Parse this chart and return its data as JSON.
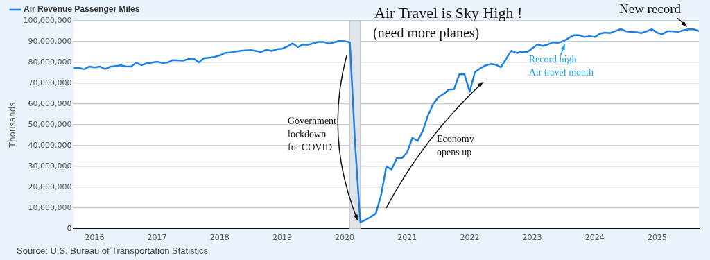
{
  "chart_data": {
    "type": "line",
    "title": "Air Travel is Sky High !",
    "subtitle": "(need more planes)",
    "ylabel": "Thousands",
    "x": [
      "2015-09",
      "2015-10",
      "2015-11",
      "2015-12",
      "2016-01",
      "2016-02",
      "2016-03",
      "2016-04",
      "2016-06",
      "2016-07",
      "2016-08",
      "2016-09",
      "2016-10",
      "2016-11",
      "2017-01",
      "2017-02",
      "2017-03",
      "2017-04",
      "2017-06",
      "2017-07",
      "2017-08",
      "2017-09",
      "2017-10",
      "2017-12",
      "2018-01",
      "2018-02",
      "2018-03",
      "2018-05",
      "2018-07",
      "2018-09",
      "2018-10",
      "2018-11",
      "2018-12",
      "2019-01",
      "2019-02",
      "2019-03",
      "2019-04",
      "2019-05",
      "2019-06",
      "2019-08",
      "2019-09",
      "2019-10",
      "2019-12",
      "2020-01",
      "2020-02",
      "2020-03",
      "2020-04",
      "2020-05",
      "2020-06",
      "2020-07",
      "2020-08",
      "2020-09",
      "2020-10",
      "2020-11",
      "2020-12",
      "2021-01",
      "2021-02",
      "2021-03",
      "2021-04",
      "2021-05",
      "2021-06",
      "2021-07",
      "2021-08",
      "2021-09",
      "2021-10",
      "2021-11",
      "2021-12",
      "2022-01",
      "2022-02",
      "2022-03",
      "2022-04",
      "2022-05",
      "2022-06",
      "2022-07",
      "2022-08",
      "2022-09",
      "2022-10",
      "2022-11",
      "2022-12",
      "2023-01",
      "2023-02",
      "2023-03",
      "2023-04",
      "2023-05",
      "2023-06",
      "2023-07",
      "2023-08",
      "2023-09",
      "2023-10",
      "2023-11",
      "2023-12",
      "2024-01",
      "2024-02",
      "2024-03",
      "2024-04",
      "2024-05",
      "2024-06",
      "2024-07",
      "2024-08",
      "2024-09",
      "2024-10",
      "2024-11",
      "2024-12",
      "2025-01",
      "2025-02",
      "2025-03",
      "2025-04",
      "2025-05",
      "2025-06",
      "2025-07",
      "2025-08",
      "2025-09"
    ],
    "series": [
      {
        "name": "Air Revenue Passenger Miles",
        "color": "#1a7fe8",
        "values": [
          77300000,
          77300000,
          76700000,
          78000000,
          77600000,
          78000000,
          76800000,
          77900000,
          78600000,
          78100000,
          78000000,
          79800000,
          78700000,
          79500000,
          80300000,
          79700000,
          79900000,
          81100000,
          80800000,
          81600000,
          81900000,
          80000000,
          82000000,
          82600000,
          83300000,
          84500000,
          84700000,
          85600000,
          85900000,
          85000000,
          86100000,
          85500000,
          86300000,
          86600000,
          87600000,
          89100000,
          87400000,
          88600000,
          88500000,
          89800000,
          89800000,
          89000000,
          90300000,
          90200000,
          89600000,
          41000000,
          3100000,
          4200000,
          5600000,
          7400000,
          16200000,
          29900000,
          28500000,
          33900000,
          33900000,
          36800000,
          43700000,
          42200000,
          47100000,
          54500000,
          60000000,
          63300000,
          64800000,
          66900000,
          67100000,
          74200000,
          74300000,
          65900000,
          75300000,
          77100000,
          78500000,
          79200000,
          78900000,
          77700000,
          81700000,
          85600000,
          84500000,
          85100000,
          84900000,
          86700000,
          88600000,
          87900000,
          88600000,
          89600000,
          89400000,
          90200000,
          91700000,
          93100000,
          93100000,
          92200000,
          92600000,
          92200000,
          93800000,
          94300000,
          94100000,
          95100000,
          96000000,
          95000000,
          94700000,
          94500000,
          94100000,
          95000000,
          95900000,
          94200000,
          93600000,
          95000000,
          95000000,
          94700000,
          95400000,
          95900000,
          95900000,
          95100000
        ]
      }
    ],
    "xlim": [
      "2015-09",
      "2025-09"
    ],
    "xticks": [
      "2016",
      "2017",
      "2018",
      "2019",
      "2020",
      "2021",
      "2022",
      "2023",
      "2024",
      "2025"
    ],
    "ylim": [
      0,
      100000000
    ],
    "yticks": [
      {
        "value": 0,
        "label": "0"
      },
      {
        "value": 10000000,
        "label": "10,000,000"
      },
      {
        "value": 20000000,
        "label": "20,000,000"
      },
      {
        "value": 30000000,
        "label": "30,000,000"
      },
      {
        "value": 40000000,
        "label": "40,000,000"
      },
      {
        "value": 50000000,
        "label": "50,000,000"
      },
      {
        "value": 60000000,
        "label": "60,000,000"
      },
      {
        "value": 70000000,
        "label": "70,000,000"
      },
      {
        "value": 80000000,
        "label": "80,000,000"
      },
      {
        "value": 90000000,
        "label": "90,000,000"
      },
      {
        "value": 100000000,
        "label": "100,000,000"
      }
    ],
    "bands": [
      {
        "axis": "x",
        "from": "2020-02",
        "to": "2020-04",
        "color": "#dfe3e8"
      }
    ],
    "annotations": [
      "Government lockdown for COVID",
      "Economy opens up",
      {
        "text": "Record high Air travel month",
        "x": "2023-07",
        "y": 90200000
      },
      {
        "text": "New record",
        "x": "2025-07",
        "y": 95900000
      },
      "Source: U.S. Bureau of Transportation Statistics"
    ],
    "grid": "y",
    "legend": "top left",
    "marker": "none",
    "line_style": "solid"
  }
}
